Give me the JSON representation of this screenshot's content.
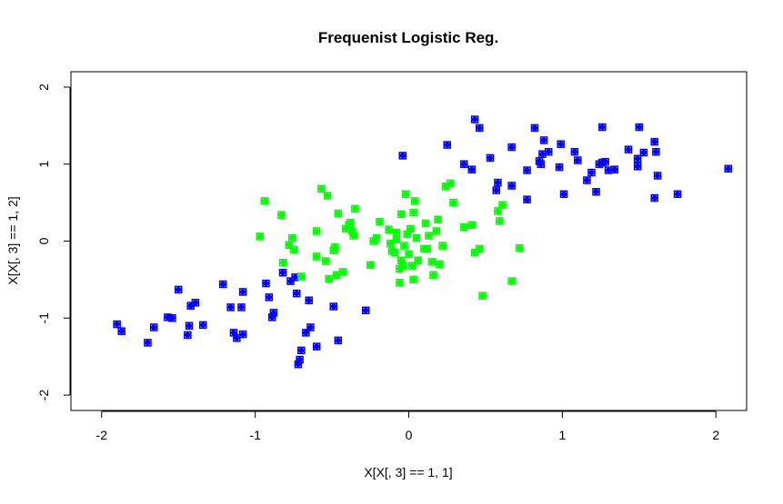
{
  "chart_data": {
    "type": "scatter",
    "title": "Frequenist Logistic Reg.",
    "xlabel": "X[X[, 3] == 1, 1]",
    "ylabel": "X[X[, 3] == 1, 2]",
    "xlim": [
      -2.2,
      2.2
    ],
    "ylim": [
      -2.2,
      2.2
    ],
    "x_ticks": [
      "-2",
      "-1",
      "0",
      "1",
      "2"
    ],
    "y_ticks": [
      "-2",
      "-1",
      "0",
      "1",
      "2"
    ],
    "grid": false,
    "colors": {
      "blue": "#0000ff",
      "green": "#00ff00"
    },
    "series": [
      {
        "color": "blue",
        "points": [
          [
            -1.9,
            -1.08
          ],
          [
            -1.87,
            -1.17
          ],
          [
            -1.7,
            -1.32
          ],
          [
            -1.66,
            -1.12
          ],
          [
            -1.57,
            -0.99
          ],
          [
            -1.54,
            -1.0
          ],
          [
            -1.5,
            -0.63
          ],
          [
            -1.44,
            -1.22
          ],
          [
            -1.43,
            -1.1
          ],
          [
            -1.42,
            -0.84
          ],
          [
            -1.39,
            -0.8
          ],
          [
            -1.34,
            -1.09
          ],
          [
            -1.21,
            -0.56
          ],
          [
            -1.16,
            -0.86
          ],
          [
            -1.14,
            -1.19
          ],
          [
            -1.12,
            -1.26
          ],
          [
            -1.09,
            -0.86
          ],
          [
            -1.08,
            -1.21
          ],
          [
            -1.08,
            -0.66
          ],
          [
            -0.93,
            -0.55
          ],
          [
            -0.91,
            -0.73
          ],
          [
            -0.89,
            -0.99
          ],
          [
            -0.88,
            -0.93
          ],
          [
            -0.82,
            -0.41
          ],
          [
            -0.77,
            -0.52
          ],
          [
            -0.74,
            -0.47
          ],
          [
            -0.73,
            -0.68
          ],
          [
            -0.72,
            -1.6
          ],
          [
            -0.71,
            -1.54
          ],
          [
            -0.7,
            -1.42
          ],
          [
            -0.67,
            -1.19
          ],
          [
            -0.65,
            -0.77
          ],
          [
            -0.64,
            -1.12
          ],
          [
            -0.6,
            -1.37
          ],
          [
            -0.49,
            -0.85
          ],
          [
            -0.46,
            -1.29
          ],
          [
            -0.28,
            -0.9
          ],
          [
            -0.04,
            1.11
          ],
          [
            0.25,
            1.25
          ],
          [
            0.36,
            1.0
          ],
          [
            0.41,
            0.93
          ],
          [
            0.43,
            1.58
          ],
          [
            0.46,
            1.47
          ],
          [
            0.53,
            1.08
          ],
          [
            0.57,
            0.66
          ],
          [
            0.58,
            0.76
          ],
          [
            0.67,
            1.22
          ],
          [
            0.67,
            0.72
          ],
          [
            0.77,
            0.92
          ],
          [
            0.77,
            0.54
          ],
          [
            0.82,
            1.47
          ],
          [
            0.85,
            1.04
          ],
          [
            0.86,
            1.0
          ],
          [
            0.87,
            1.13
          ],
          [
            0.88,
            1.31
          ],
          [
            0.91,
            1.16
          ],
          [
            0.98,
            0.96
          ],
          [
            0.99,
            1.26
          ],
          [
            1.01,
            0.61
          ],
          [
            1.08,
            1.16
          ],
          [
            1.1,
            1.05
          ],
          [
            1.16,
            0.79
          ],
          [
            1.19,
            0.89
          ],
          [
            1.22,
            0.64
          ],
          [
            1.24,
            1.0
          ],
          [
            1.26,
            1.48
          ],
          [
            1.26,
            1.02
          ],
          [
            1.28,
            1.03
          ],
          [
            1.3,
            0.92
          ],
          [
            1.34,
            0.93
          ],
          [
            1.43,
            1.19
          ],
          [
            1.49,
            1.07
          ],
          [
            1.49,
            0.97
          ],
          [
            1.5,
            1.48
          ],
          [
            1.53,
            1.15
          ],
          [
            1.6,
            0.56
          ],
          [
            1.6,
            1.29
          ],
          [
            1.61,
            1.16
          ],
          [
            1.62,
            0.85
          ],
          [
            1.75,
            0.61
          ],
          [
            2.08,
            0.94
          ]
        ]
      },
      {
        "color": "green",
        "points": [
          [
            -0.97,
            0.06
          ],
          [
            -0.94,
            0.52
          ],
          [
            -0.83,
            0.34
          ],
          [
            -0.82,
            -0.28
          ],
          [
            -0.78,
            -0.05
          ],
          [
            -0.76,
            0.04
          ],
          [
            -0.75,
            -0.11
          ],
          [
            -0.7,
            -0.46
          ],
          [
            -0.6,
            0.13
          ],
          [
            -0.6,
            -0.2
          ],
          [
            -0.57,
            0.68
          ],
          [
            -0.54,
            -0.26
          ],
          [
            -0.53,
            0.59
          ],
          [
            -0.52,
            -0.49
          ],
          [
            -0.49,
            -0.12
          ],
          [
            -0.48,
            -0.08
          ],
          [
            -0.47,
            -0.44
          ],
          [
            -0.46,
            0.36
          ],
          [
            -0.43,
            -0.4
          ],
          [
            -0.41,
            0.16
          ],
          [
            -0.39,
            0.21
          ],
          [
            -0.38,
            0.24
          ],
          [
            -0.37,
            0.13
          ],
          [
            -0.36,
            0.07
          ],
          [
            -0.35,
            0.42
          ],
          [
            -0.25,
            -0.31
          ],
          [
            -0.23,
            0.0
          ],
          [
            -0.21,
            0.04
          ],
          [
            -0.19,
            0.25
          ],
          [
            -0.13,
            0.15
          ],
          [
            -0.12,
            -0.03
          ],
          [
            -0.11,
            -0.13
          ],
          [
            -0.09,
            -0.15
          ],
          [
            -0.08,
            0.11
          ],
          [
            -0.08,
            0.02
          ],
          [
            -0.06,
            -0.54
          ],
          [
            -0.06,
            -0.36
          ],
          [
            -0.05,
            -0.25
          ],
          [
            -0.05,
            0.35
          ],
          [
            -0.04,
            -0.32
          ],
          [
            -0.03,
            -0.06
          ],
          [
            -0.02,
            0.61
          ],
          [
            -0.01,
            0.09
          ],
          [
            0.0,
            -0.17
          ],
          [
            0.01,
            0.16
          ],
          [
            0.02,
            -0.32
          ],
          [
            0.03,
            0.37
          ],
          [
            0.03,
            -0.5
          ],
          [
            0.04,
            0.52
          ],
          [
            0.05,
            0.04
          ],
          [
            0.06,
            -0.25
          ],
          [
            0.1,
            -0.1
          ],
          [
            0.11,
            0.23
          ],
          [
            0.12,
            -0.1
          ],
          [
            0.13,
            0.07
          ],
          [
            0.15,
            -0.27
          ],
          [
            0.16,
            -0.44
          ],
          [
            0.18,
            0.13
          ],
          [
            0.19,
            0.28
          ],
          [
            0.2,
            -0.3
          ],
          [
            0.22,
            -0.06
          ],
          [
            0.24,
            0.71
          ],
          [
            0.27,
            0.75
          ],
          [
            0.29,
            0.5
          ],
          [
            0.36,
            0.18
          ],
          [
            0.41,
            0.21
          ],
          [
            0.43,
            -0.15
          ],
          [
            0.46,
            -0.1
          ],
          [
            0.48,
            -0.71
          ],
          [
            0.58,
            0.39
          ],
          [
            0.59,
            0.26
          ],
          [
            0.61,
            0.47
          ],
          [
            0.67,
            -0.52
          ],
          [
            0.72,
            -0.09
          ]
        ]
      }
    ]
  }
}
